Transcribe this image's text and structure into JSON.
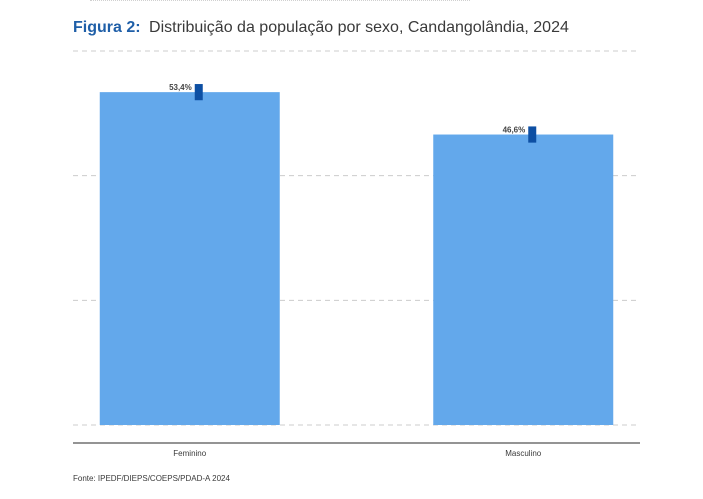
{
  "figure": {
    "label": "Figura 2:",
    "title": "Distribuição da população por sexo, Candangolândia, 2024"
  },
  "chart_data": {
    "type": "bar",
    "categories": [
      "Feminino",
      "Masculino"
    ],
    "values": [
      53.4,
      46.6
    ],
    "value_labels": [
      "53,4%",
      "46,6%"
    ],
    "error_bars": [
      [
        52.1,
        54.7
      ],
      [
        45.3,
        47.9
      ]
    ],
    "unit": "%",
    "xlabel": "",
    "ylabel": "",
    "ylim": [
      0,
      60
    ],
    "grid": true,
    "legend": "none",
    "colors": {
      "bar": "#63a8eb",
      "error_bar": "#0d4fa3",
      "grid": "#cccccc",
      "axis": "#555555"
    }
  },
  "source": "Fonte: IPEDF/DIEPS/COEPS/PDAD-A 2024"
}
